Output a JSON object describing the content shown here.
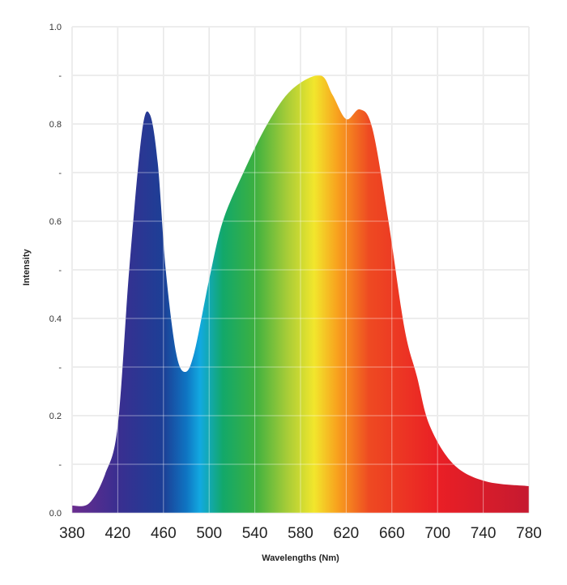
{
  "chart_data": {
    "type": "area",
    "title": "",
    "xlabel": "Wavelengths (Nm)",
    "ylabel": "Intensity",
    "xlim": [
      380,
      780
    ],
    "ylim": [
      0,
      1.0
    ],
    "grid": true,
    "x_ticks": [
      380,
      420,
      460,
      500,
      540,
      580,
      620,
      660,
      700,
      740,
      780
    ],
    "x_tick_labels": [
      "380",
      "420",
      "460",
      "500",
      "540",
      "580",
      "620",
      "660",
      "700",
      "740",
      "780"
    ],
    "y_ticks": [
      1.0,
      0.9,
      0.8,
      0.7,
      0.6,
      0.5,
      0.4,
      0.3,
      0.2,
      0.1,
      0.0
    ],
    "y_tick_labels": [
      "1.0",
      "-",
      "0.8",
      "-",
      "0.6",
      "-",
      "0.4",
      "-",
      "0.2",
      "-",
      "0.0"
    ],
    "fill": "visible spectrum gradient",
    "series": [
      {
        "x": [
          380,
          395,
          409,
          420,
          430,
          441,
          448,
          455,
          462,
          471,
          479,
          487,
          500,
          512,
          530,
          551,
          572,
          597,
          608,
          620,
          632,
          643,
          657,
          671,
          682,
          693,
          714,
          742,
          780
        ],
        "y": [
          0.015,
          0.02,
          0.08,
          0.18,
          0.5,
          0.78,
          0.82,
          0.72,
          0.5,
          0.33,
          0.29,
          0.33,
          0.48,
          0.6,
          0.7,
          0.8,
          0.87,
          0.9,
          0.86,
          0.81,
          0.83,
          0.79,
          0.6,
          0.38,
          0.28,
          0.18,
          0.1,
          0.065,
          0.055
        ]
      }
    ]
  }
}
